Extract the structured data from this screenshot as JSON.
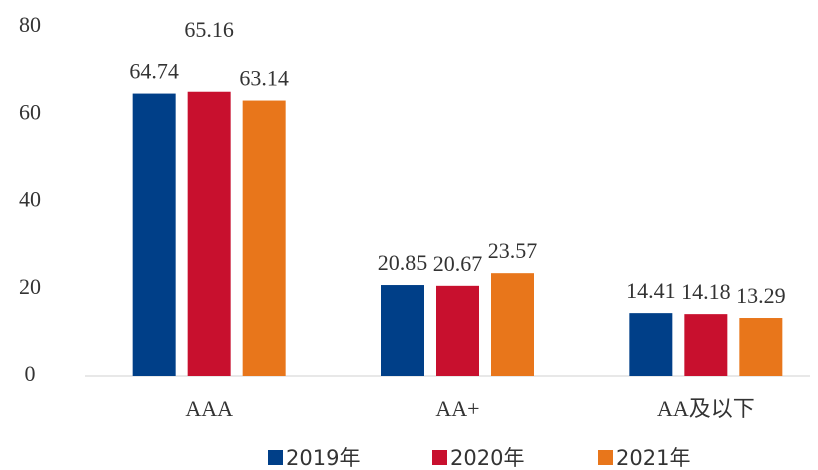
{
  "chart_data": {
    "type": "bar",
    "categories": [
      "AAA",
      "AA+",
      "AA及以下"
    ],
    "series": [
      {
        "name": "2019年",
        "color": "#003f88",
        "values": [
          64.74,
          20.85,
          14.41
        ]
      },
      {
        "name": "2020年",
        "color": "#c8102e",
        "values": [
          65.16,
          20.67,
          14.18
        ]
      },
      {
        "name": "2021年",
        "color": "#e8761b",
        "values": [
          63.14,
          23.57,
          13.29
        ]
      }
    ],
    "ylim": [
      0,
      80
    ],
    "yticks": [
      0,
      20,
      40,
      60,
      80
    ],
    "legend": "bottom"
  }
}
